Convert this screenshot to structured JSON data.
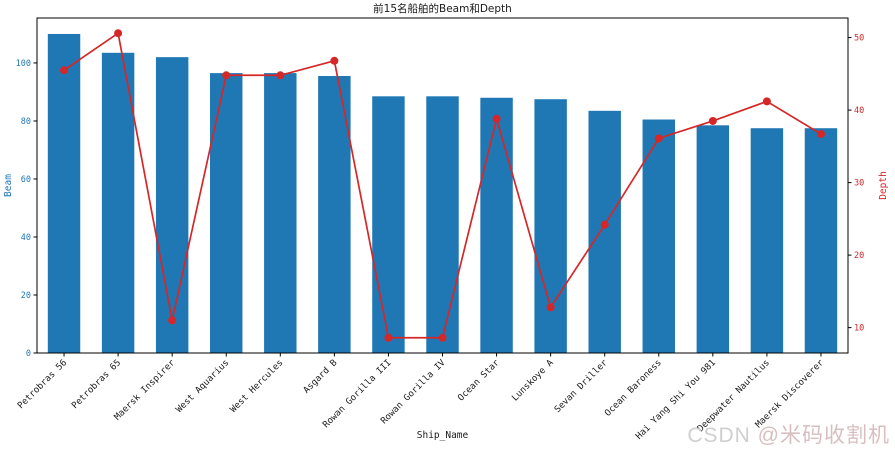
{
  "watermark": {
    "brand": "CSDN ",
    "user": "@米码收割机",
    "brand_color": "#cfcfcf",
    "user_color": "#d8bfbf"
  },
  "chart_data": {
    "type": "bar",
    "title": "前15名船舶的Beam和Depth",
    "xlabel": "Ship_Name",
    "grid": false,
    "legend": "none",
    "x_tick_rotation": 45,
    "categories": [
      "Petrobras 56",
      "Petrobras 65",
      "Maersk Inspirer",
      "West Aquarius",
      "West Hercules",
      "Asgard B",
      "Rowan Gorilla III",
      "Rowan Gorilla IV",
      "Ocean Star",
      "Lunskoye A",
      "Sevan Driller",
      "Ocean Baroness",
      "Hai Yang Shi You 981",
      "Deepwater Nautilus",
      "Maersk Discoverer"
    ],
    "series": [
      {
        "name": "Beam",
        "type": "bar",
        "yaxis": "left",
        "color": "#1f77b4",
        "values": [
          110,
          103.5,
          102,
          96.5,
          96.5,
          95.5,
          88.5,
          88.5,
          88,
          87.5,
          83.5,
          80.5,
          78.5,
          77.5,
          77.5
        ]
      },
      {
        "name": "Depth",
        "type": "line",
        "yaxis": "right",
        "color": "#d62728",
        "marker": "circle",
        "values": [
          45.5,
          50.6,
          11,
          44.8,
          44.8,
          46.8,
          8.6,
          8.6,
          38.8,
          12.8,
          24.2,
          36.1,
          38.5,
          41.2,
          36.7
        ]
      }
    ],
    "axes": {
      "left": {
        "label": "Beam",
        "color": "#1f77b4",
        "ticks": [
          0,
          20,
          40,
          60,
          80,
          100
        ],
        "range": [
          0,
          115.5
        ]
      },
      "right": {
        "label": "Depth",
        "color": "#d62728",
        "ticks": [
          10,
          20,
          30,
          40,
          50
        ],
        "range": [
          6.5,
          52.7
        ]
      }
    }
  }
}
